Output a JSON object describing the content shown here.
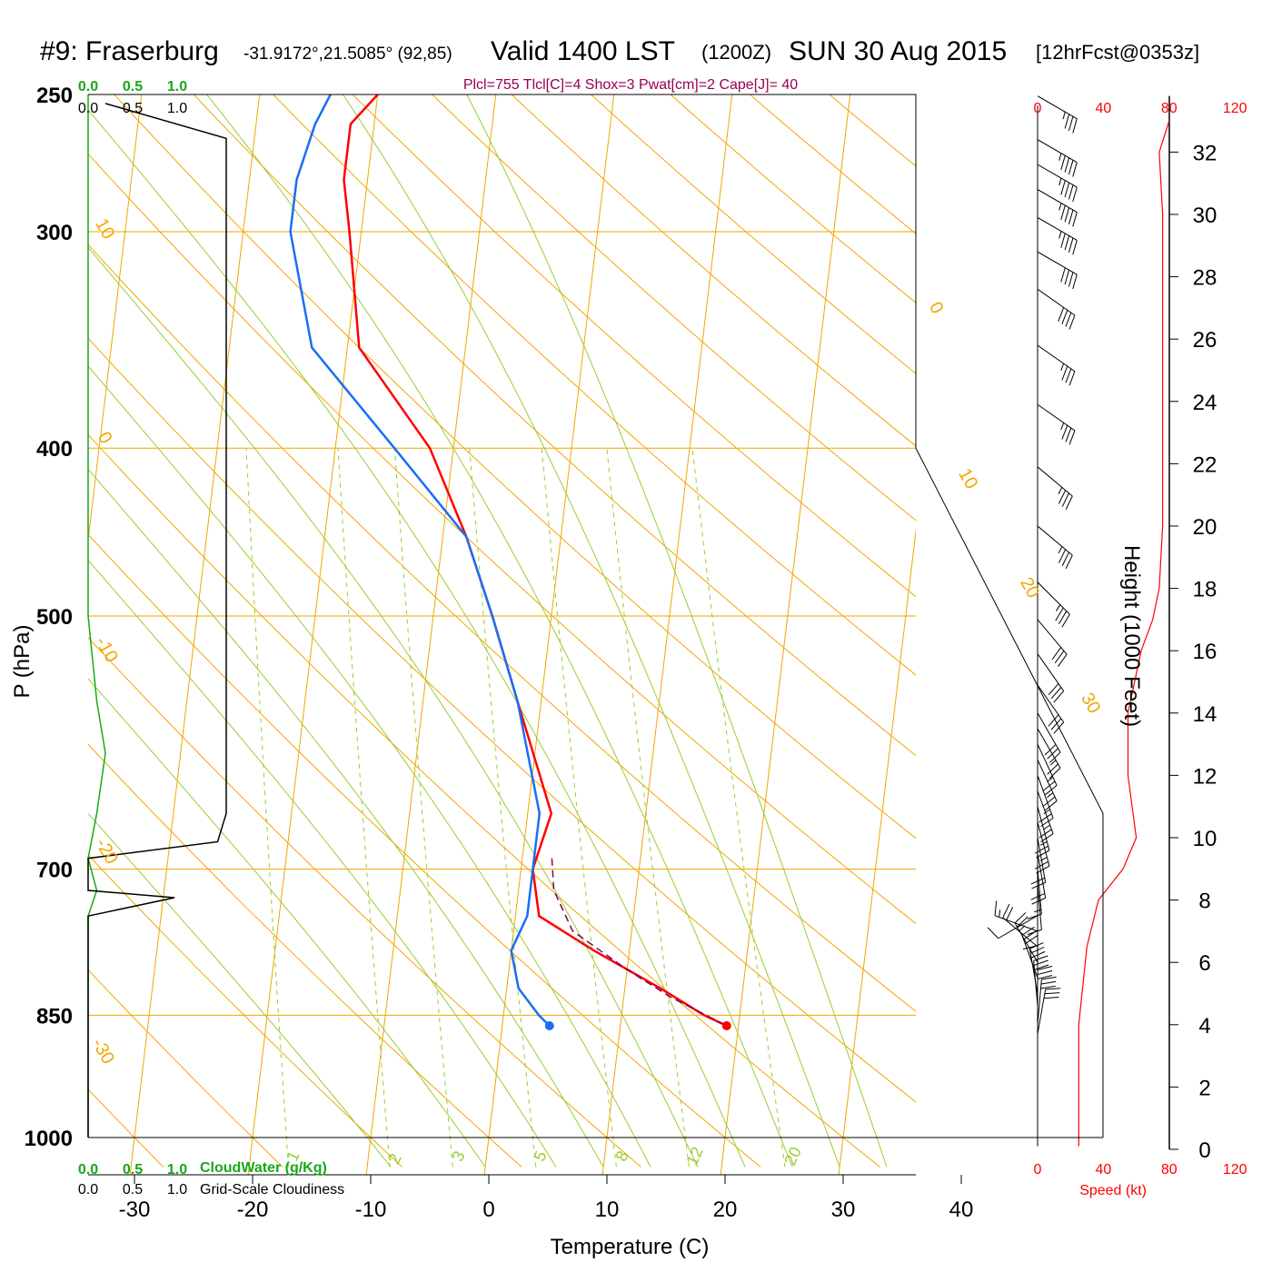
{
  "header": {
    "station": "#9: Fraserburg",
    "coords": "-31.9172°,21.5085° (92,85)",
    "valid": "Valid 1400 LST",
    "zulu": "(1200Z)",
    "date": "SUN 30 Aug 2015",
    "forecast": "[12hrFcst@0353z]",
    "indices": "Plcl=755 Tlcl[C]=4 Shox=3 Pwat[cm]=2 Cape[J]= 40"
  },
  "axes": {
    "xlabel": "Temperature (C)",
    "ylabel": "P (hPa)",
    "height_label": "Height (1000 Feet)",
    "speed_label": "Speed (kt)",
    "cloud_water_label": "CloudWater (g/Kg)",
    "cloudiness_label": "Grid-Scale Cloudiness"
  },
  "colors": {
    "temperature": "#ff0000",
    "dewpoint": "#1a6ef5",
    "parcel": "#800060",
    "isotherm": "#f2a600",
    "dry_adiabat": "#f2a600",
    "moist_adiabat": "#9acd32",
    "mixing_ratio": "#9acd32",
    "cloud_water": "#18a818",
    "cloudiness": "#000000",
    "wind_speed": "#ff0000"
  },
  "chart_data": {
    "type": "line",
    "skewt": true,
    "x_ticks": [
      "-30",
      "-20",
      "-10",
      "0",
      "10",
      "20",
      "30",
      "40"
    ],
    "x_tick_values": [
      -30,
      -20,
      -10,
      0,
      10,
      20,
      30,
      40
    ],
    "p_ticks": [
      "250",
      "300",
      "400",
      "500",
      "700",
      "850",
      "1000"
    ],
    "p_tick_values": [
      250,
      300,
      400,
      500,
      700,
      850,
      1000
    ],
    "height_ticks": [
      "0",
      "2",
      "4",
      "6",
      "8",
      "10",
      "12",
      "14",
      "16",
      "18",
      "20",
      "22",
      "24",
      "26",
      "28",
      "30",
      "32"
    ],
    "height_tick_values": [
      0,
      2,
      4,
      6,
      8,
      10,
      12,
      14,
      16,
      18,
      20,
      22,
      24,
      26,
      28,
      30,
      32
    ],
    "speed_ticks_top": [
      "0",
      "40",
      "80",
      "120"
    ],
    "speed_ticks_bottom": [
      "0",
      "40",
      "80",
      "120"
    ],
    "speed_tick_values": [
      0,
      40,
      80,
      120
    ],
    "cloud_ticks": [
      "0.0",
      "0.5",
      "1.0"
    ],
    "isotherm_labels": [
      "10",
      "0",
      "-10",
      "-20",
      "-30",
      "0",
      "10",
      "20",
      "30"
    ],
    "mixing_ratio_labels": [
      "1",
      "2",
      "3",
      "5",
      "8",
      "12",
      "20"
    ],
    "temperature": {
      "name": "Temperature",
      "points": [
        [
          250,
          -20
        ],
        [
          260,
          -22
        ],
        [
          280,
          -22
        ],
        [
          300,
          -21
        ],
        [
          350,
          -19
        ],
        [
          400,
          -12
        ],
        [
          450,
          -8
        ],
        [
          500,
          -5
        ],
        [
          560,
          -2
        ],
        [
          650,
          2
        ],
        [
          700,
          1
        ],
        [
          745,
          2
        ],
        [
          780,
          7
        ],
        [
          820,
          13
        ],
        [
          850,
          17
        ],
        [
          862,
          19
        ]
      ]
    },
    "dewpoint": {
      "name": "Dewpoint",
      "points": [
        [
          250,
          -24
        ],
        [
          260,
          -25
        ],
        [
          280,
          -26
        ],
        [
          300,
          -26
        ],
        [
          350,
          -23
        ],
        [
          400,
          -15
        ],
        [
          450,
          -8
        ],
        [
          500,
          -5
        ],
        [
          560,
          -2
        ],
        [
          650,
          1
        ],
        [
          700,
          1
        ],
        [
          745,
          1
        ],
        [
          780,
          0
        ],
        [
          820,
          1
        ],
        [
          850,
          3
        ],
        [
          862,
          4
        ]
      ]
    },
    "parcel": {
      "name": "Parcel",
      "points": [
        [
          690,
          2.5
        ],
        [
          720,
          3
        ],
        [
          760,
          5
        ],
        [
          800,
          10
        ],
        [
          830,
          14
        ],
        [
          862,
          19
        ]
      ]
    },
    "surface_temperature": 19,
    "surface_dewpoint": 4,
    "surface_pressure": 862,
    "cloud_water": [
      [
        250,
        0
      ],
      [
        500,
        0
      ],
      [
        560,
        0.05
      ],
      [
        600,
        0.1
      ],
      [
        650,
        0.05
      ],
      [
        690,
        0
      ],
      [
        720,
        0.05
      ],
      [
        745,
        0
      ],
      [
        1000,
        0
      ]
    ],
    "cloudiness": [
      [
        253,
        0.1
      ],
      [
        265,
        0.8
      ],
      [
        650,
        0.8
      ],
      [
        675,
        0.75
      ],
      [
        690,
        0
      ],
      [
        720,
        0
      ],
      [
        727,
        0.5
      ],
      [
        745,
        0
      ],
      [
        1000,
        0
      ]
    ],
    "wind_speed_profile": [
      [
        0.1,
        25
      ],
      [
        4,
        25
      ],
      [
        6.5,
        30
      ],
      [
        8,
        37
      ],
      [
        9,
        52
      ],
      [
        10,
        60
      ],
      [
        12,
        55
      ],
      [
        14,
        55
      ],
      [
        16,
        63
      ],
      [
        17,
        70
      ],
      [
        18,
        74
      ],
      [
        20,
        76
      ],
      [
        22,
        76
      ],
      [
        24,
        76
      ],
      [
        26,
        76
      ],
      [
        28,
        76
      ],
      [
        30,
        76
      ],
      [
        32,
        74
      ],
      [
        33,
        80
      ]
    ],
    "wind_barbs": [
      {
        "h": 33.8,
        "dir": 300,
        "spd": 35
      },
      {
        "h": 32.4,
        "dir": 300,
        "spd": 45
      },
      {
        "h": 31.6,
        "dir": 300,
        "spd": 45
      },
      {
        "h": 30.8,
        "dir": 300,
        "spd": 45
      },
      {
        "h": 29.9,
        "dir": 300,
        "spd": 45
      },
      {
        "h": 28.8,
        "dir": 300,
        "spd": 40
      },
      {
        "h": 27.6,
        "dir": 305,
        "spd": 40
      },
      {
        "h": 25.8,
        "dir": 305,
        "spd": 35
      },
      {
        "h": 23.9,
        "dir": 305,
        "spd": 35
      },
      {
        "h": 21.9,
        "dir": 310,
        "spd": 35
      },
      {
        "h": 20.0,
        "dir": 310,
        "spd": 35
      },
      {
        "h": 18.2,
        "dir": 315,
        "spd": 35
      },
      {
        "h": 17.0,
        "dir": 320,
        "spd": 30
      },
      {
        "h": 15.9,
        "dir": 325,
        "spd": 30
      },
      {
        "h": 14.9,
        "dir": 325,
        "spd": 30
      },
      {
        "h": 14.0,
        "dir": 330,
        "spd": 30
      },
      {
        "h": 13.5,
        "dir": 330,
        "spd": 25
      },
      {
        "h": 13.0,
        "dir": 335,
        "spd": 25
      },
      {
        "h": 12.5,
        "dir": 335,
        "spd": 25
      },
      {
        "h": 12.0,
        "dir": 340,
        "spd": 25
      },
      {
        "h": 11.5,
        "dir": 340,
        "spd": 25
      },
      {
        "h": 11.0,
        "dir": 345,
        "spd": 25
      },
      {
        "h": 10.5,
        "dir": 345,
        "spd": 25
      },
      {
        "h": 10.0,
        "dir": 350,
        "spd": 20
      },
      {
        "h": 9.5,
        "dir": 350,
        "spd": 20
      },
      {
        "h": 9.0,
        "dir": 355,
        "spd": 15
      },
      {
        "h": 8.5,
        "dir": 355,
        "spd": 10
      },
      {
        "h": 8.0,
        "dir": 0,
        "spd": 10
      },
      {
        "h": 7.5,
        "dir": 60,
        "spd": 10
      },
      {
        "h": 7.0,
        "dir": 110,
        "spd": 15
      },
      {
        "h": 6.5,
        "dir": 130,
        "spd": 20
      },
      {
        "h": 6.0,
        "dir": 150,
        "spd": 25
      },
      {
        "h": 5.5,
        "dir": 160,
        "spd": 30
      },
      {
        "h": 5.0,
        "dir": 170,
        "spd": 30
      },
      {
        "h": 4.6,
        "dir": 175,
        "spd": 30
      },
      {
        "h": 4.3,
        "dir": 180,
        "spd": 30
      },
      {
        "h": 4.0,
        "dir": 185,
        "spd": 30
      },
      {
        "h": 3.7,
        "dir": 190,
        "spd": 30
      }
    ]
  }
}
